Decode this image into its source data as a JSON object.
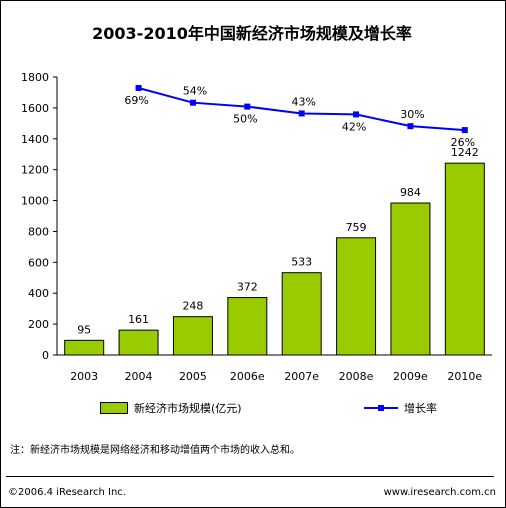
{
  "title": "2003-2010年中国新经济市场规模及增长率",
  "legend": {
    "bar_label": "新经济市场规模(亿元)",
    "line_label": "增长率"
  },
  "note": "注：新经济市场规模是网络经济和移动增值两个市场的收入总和。",
  "footer": {
    "copyright": "©2006.4 iResearch Inc.",
    "url": "www.iresearch.com.cn"
  },
  "colors": {
    "bar": "#99cc00",
    "line": "#0000ff"
  },
  "chart_data": {
    "type": "bar",
    "categories": [
      "2003",
      "2004",
      "2005",
      "2006e",
      "2007e",
      "2008e",
      "2009e",
      "2010e"
    ],
    "series": [
      {
        "name": "新经济市场规模(亿元)",
        "type": "bar",
        "values": [
          95,
          161,
          248,
          372,
          533,
          759,
          984,
          1242
        ]
      },
      {
        "name": "增长率",
        "type": "line",
        "values": [
          null,
          69,
          54,
          50,
          43,
          42,
          30,
          26
        ],
        "labels": [
          "",
          "69%",
          "54%",
          "50%",
          "43%",
          "42%",
          "30%",
          "26%"
        ]
      }
    ],
    "ylim": [
      0,
      1800
    ],
    "yticks": [
      0,
      200,
      400,
      600,
      800,
      1000,
      1200,
      1400,
      1600,
      1800
    ],
    "grid": false,
    "legend_position": "bottom"
  }
}
